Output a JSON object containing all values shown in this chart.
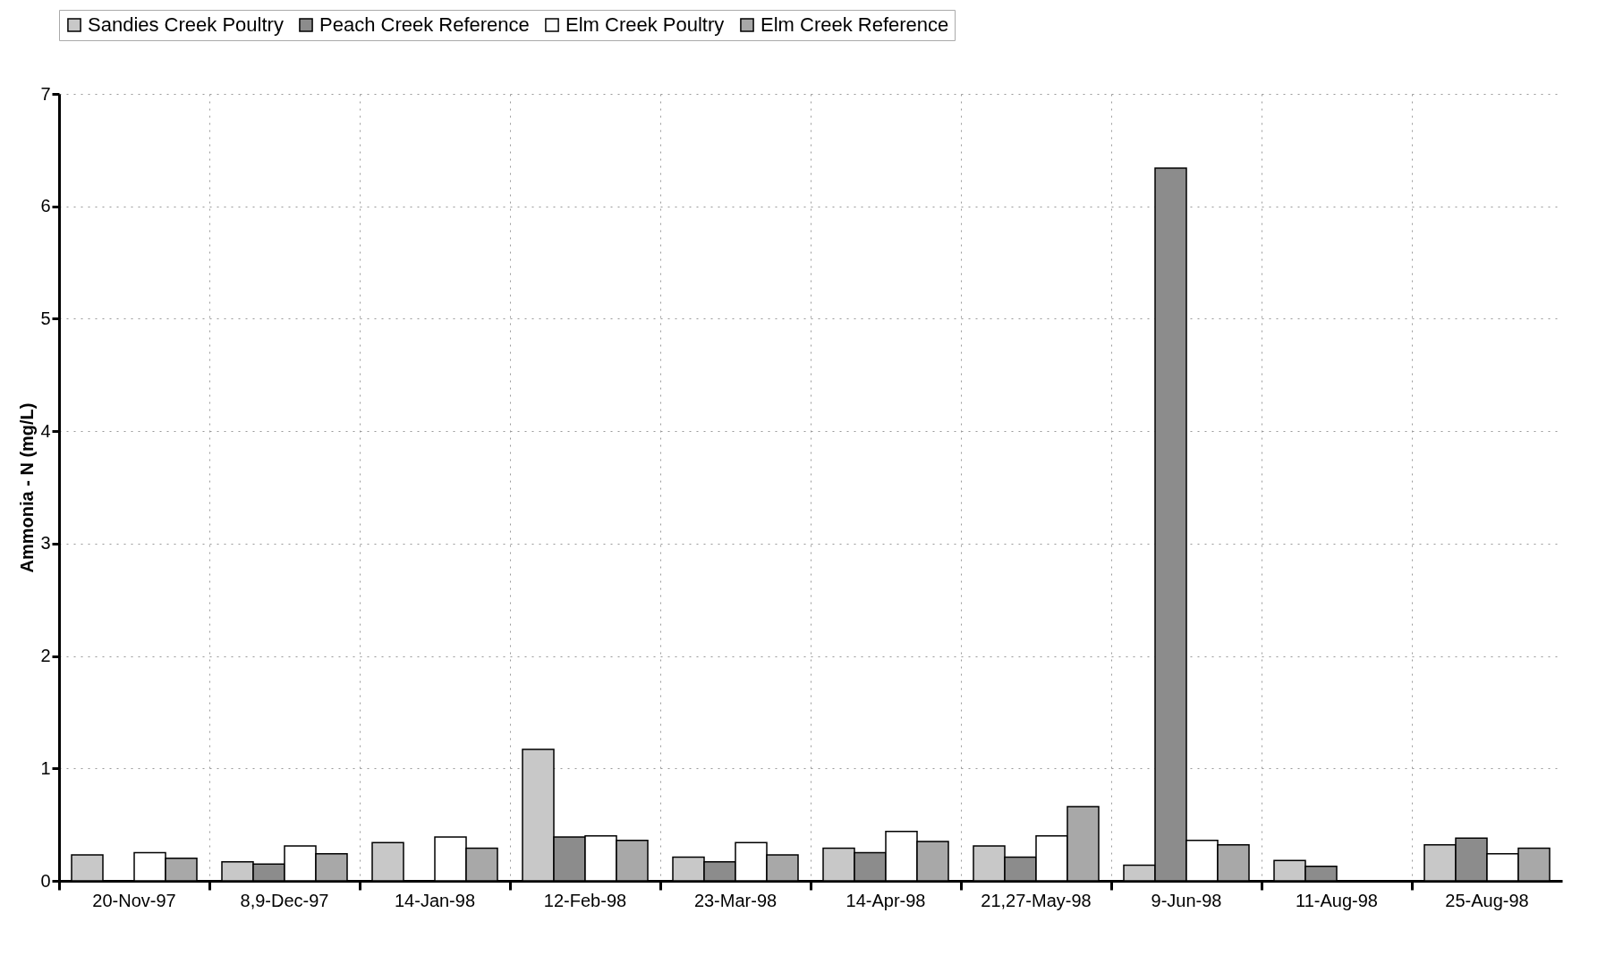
{
  "chart_data": {
    "type": "bar",
    "ylabel": "Ammonia - N (mg/L)",
    "categories": [
      "20-Nov-97",
      "8,9-Dec-97",
      "14-Jan-98",
      "12-Feb-98",
      "23-Mar-98",
      "14-Apr-98",
      "21,27-May-98",
      "9-Jun-98",
      "11-Aug-98",
      "25-Aug-98"
    ],
    "series": [
      {
        "name": "Sandies Creek Poultry",
        "color": "#c8c8c8",
        "values": [
          0.23,
          0.17,
          0.34,
          1.17,
          0.21,
          0.29,
          0.31,
          0.14,
          0.18,
          0.32
        ]
      },
      {
        "name": "Peach Creek Reference",
        "color": "#8c8c8c",
        "values": [
          null,
          0.15,
          null,
          0.39,
          0.17,
          0.25,
          0.21,
          6.34,
          0.13,
          0.38
        ]
      },
      {
        "name": "Elm Creek Poultry",
        "color": "#ffffff",
        "values": [
          0.25,
          0.31,
          0.39,
          0.4,
          0.34,
          0.44,
          0.4,
          0.36,
          null,
          0.24
        ]
      },
      {
        "name": "Elm Creek Reference",
        "color": "#a8a8a8",
        "values": [
          0.2,
          0.24,
          0.29,
          0.36,
          0.23,
          0.35,
          0.66,
          0.32,
          null,
          0.29
        ]
      }
    ],
    "ylim": [
      0,
      7
    ],
    "yticks": [
      0,
      1,
      2,
      3,
      4,
      5,
      6,
      7
    ],
    "grid": true,
    "legend": "top"
  }
}
